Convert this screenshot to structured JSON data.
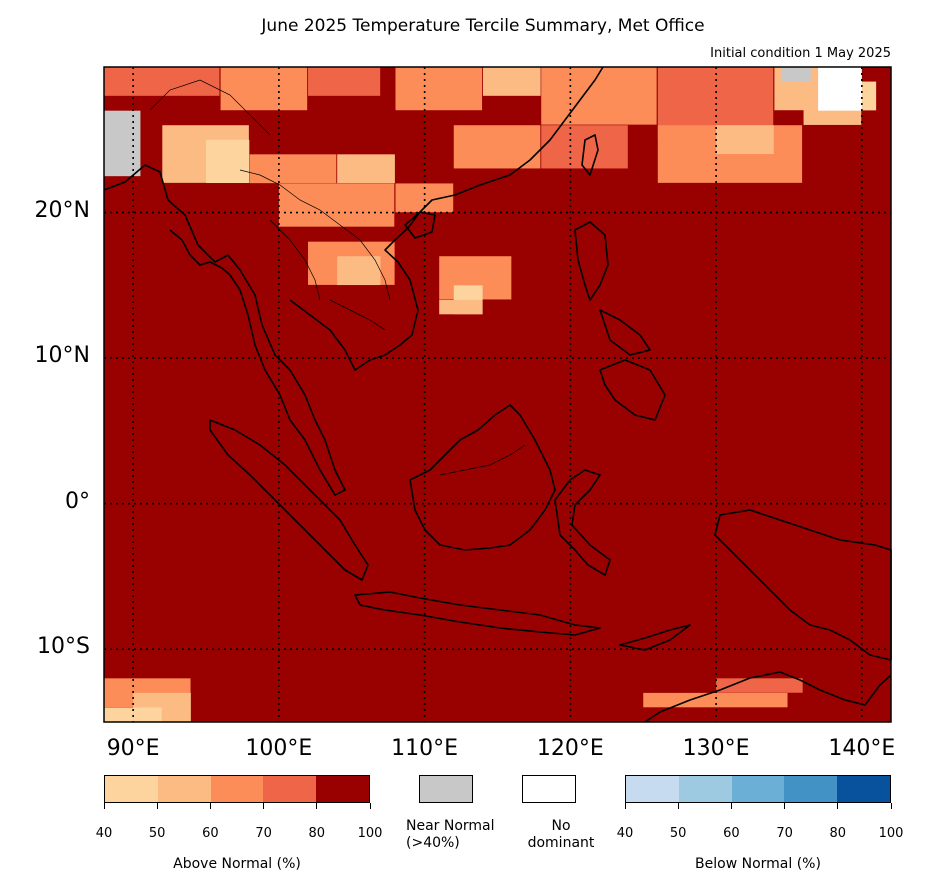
{
  "title": "June 2025 Temperature Tercile Summary, Met Office",
  "subtitle": "Initial condition 1 May 2025",
  "map": {
    "lon_range": [
      88,
      142
    ],
    "lat_range": [
      -15,
      30
    ],
    "grid": true,
    "lat_labels": [
      "20°N",
      "10°N",
      "0°",
      "10°S"
    ],
    "lon_labels": [
      "90°E",
      "100°E",
      "110°E",
      "120°E",
      "130°E",
      "140°E"
    ],
    "dominant_category": "Above Normal 80-100%",
    "background_color": "#990000"
  },
  "legend": {
    "above_normal": {
      "label": "Above Normal (%)",
      "ticks": [
        "40",
        "50",
        "60",
        "70",
        "80",
        "100"
      ],
      "colors": [
        "#fdd49e",
        "#fdbb84",
        "#fc8d59",
        "#ef6548",
        "#990000"
      ]
    },
    "near_normal": {
      "label_line1": "Near Normal",
      "label_line2": "(>40%)",
      "color": "#c8c8c8"
    },
    "no_dominant": {
      "label_line1": "No",
      "label_line2": "dominant",
      "color": "#ffffff"
    },
    "below_normal": {
      "label": "Below Normal (%)",
      "ticks": [
        "40",
        "50",
        "60",
        "70",
        "80",
        "100"
      ],
      "colors": [
        "#c6dbef",
        "#9ecae1",
        "#6baed6",
        "#4292c6",
        "#08519c"
      ]
    }
  }
}
